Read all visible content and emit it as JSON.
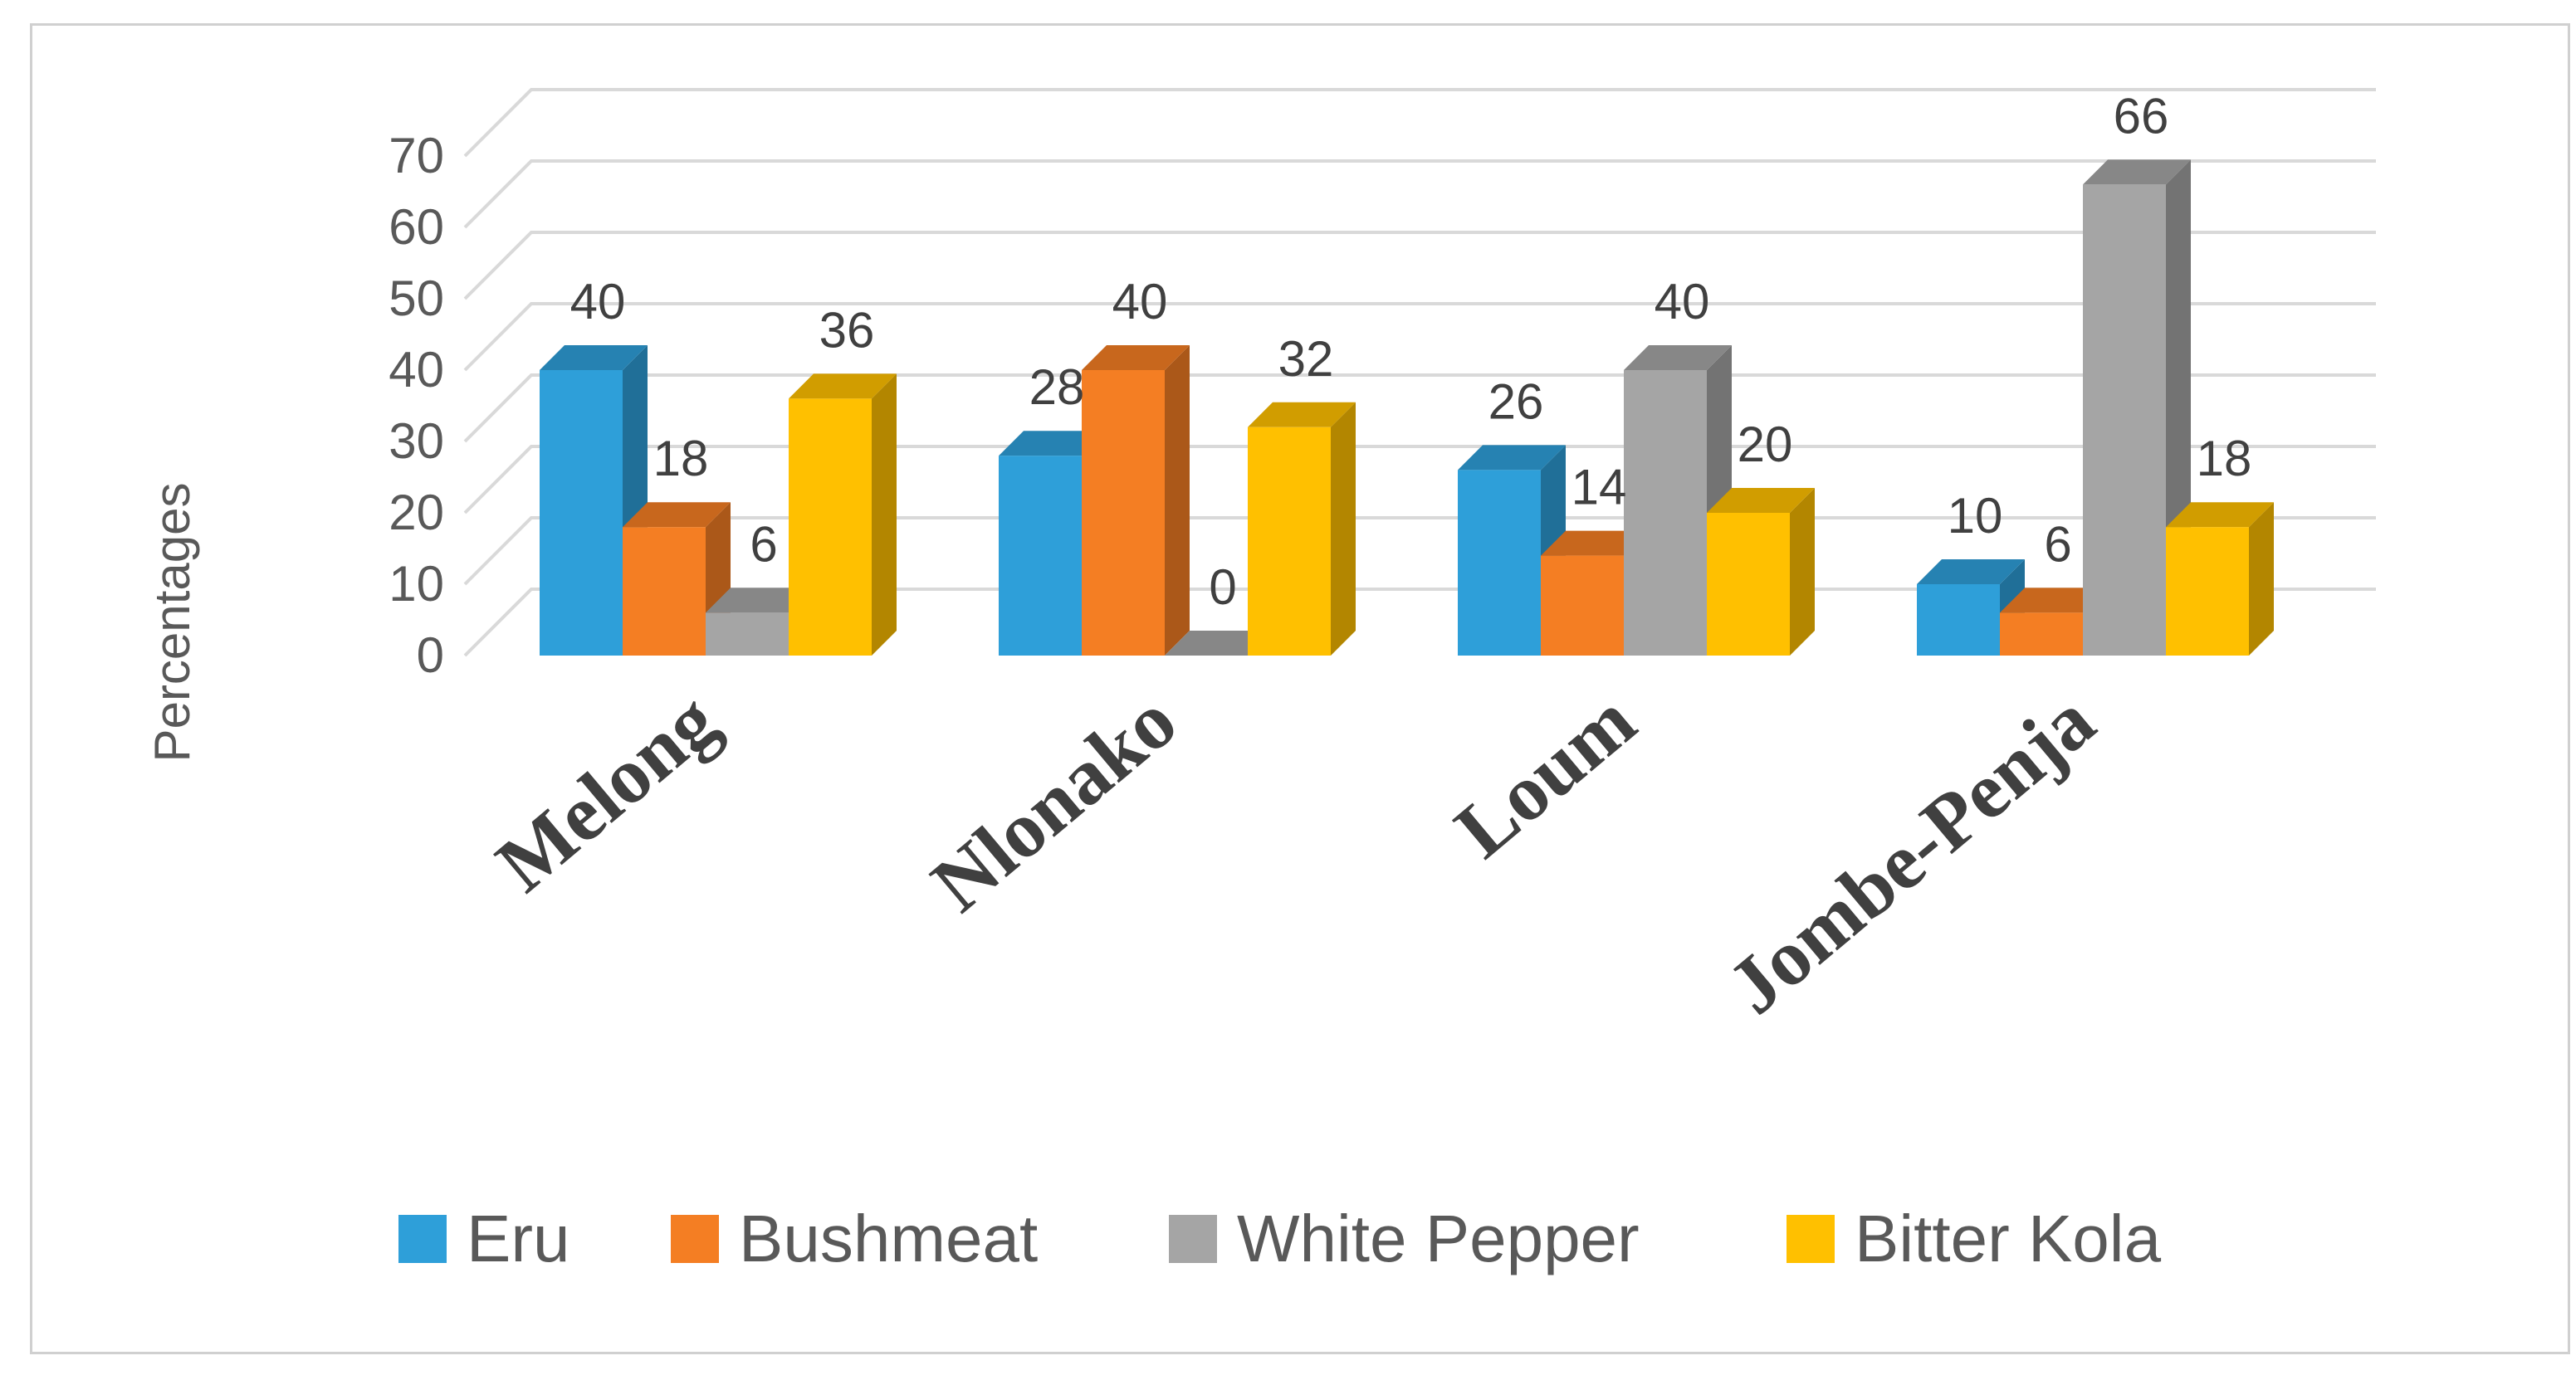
{
  "chart_data": {
    "type": "bar",
    "categories": [
      "Melong",
      "Nlonako",
      "Loum",
      "Jombe-Penja"
    ],
    "series": [
      {
        "name": "Eru",
        "values": [
          40,
          28,
          26,
          10
        ],
        "color": "#2e9fd9"
      },
      {
        "name": "Bushmeat",
        "values": [
          18,
          40,
          14,
          6
        ],
        "color": "#f47e23"
      },
      {
        "name": "White Pepper",
        "values": [
          6,
          0,
          40,
          66
        ],
        "color": "#a5a5a5"
      },
      {
        "name": "Bitter Kola",
        "values": [
          36,
          32,
          20,
          18
        ],
        "color": "#ffc000"
      }
    ],
    "ylabel": "Percentages",
    "ylim": [
      0,
      70
    ],
    "yticks": [
      "0",
      "10",
      "20",
      "30",
      "40",
      "50",
      "60",
      "70"
    ],
    "grid": true,
    "legend": "bottom",
    "style": "3d-clustered-column"
  }
}
